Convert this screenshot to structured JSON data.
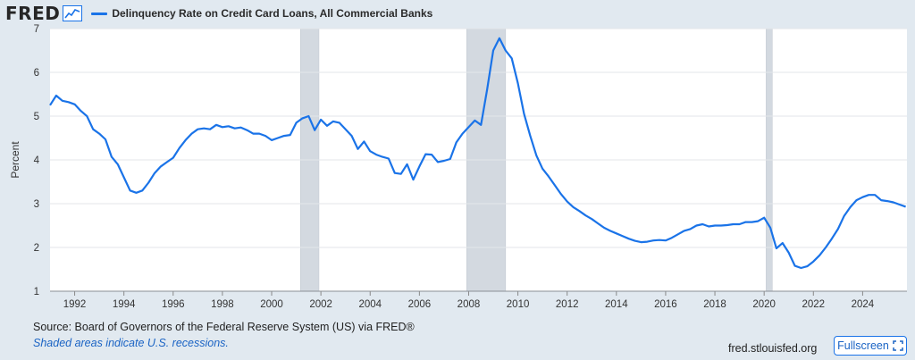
{
  "header": {
    "logo": "FRED",
    "logo_icon": "trend-chart-icon",
    "series_label": "Delinquency Rate on Credit Card Loans, All Commercial Banks"
  },
  "footer": {
    "source": "Source: Board of Governors of the Federal Reserve System (US) via FRED®",
    "note": "Shaded areas indicate U.S. recessions.",
    "link": "fred.stlouisfed.org",
    "fullscreen_label": "Fullscreen",
    "fullscreen_icon": "expand-icon"
  },
  "colors": {
    "line": "#1a73e8",
    "recession": "#d3d9e0",
    "background": "#e1e9f0",
    "plot": "#ffffff"
  },
  "chart_data": {
    "type": "line",
    "ylabel": "Percent",
    "xlabel": "",
    "ylim": [
      1,
      7
    ],
    "xlim": [
      1991.0,
      2025.8
    ],
    "yticks": [
      1,
      2,
      3,
      4,
      5,
      6,
      7
    ],
    "xticks": [
      1992,
      1994,
      1996,
      1998,
      2000,
      2002,
      2004,
      2006,
      2008,
      2010,
      2012,
      2014,
      2016,
      2018,
      2020,
      2022,
      2024
    ],
    "grid": "horizontal",
    "recessions": [
      [
        2001.17,
        2001.92
      ],
      [
        2007.92,
        2009.5
      ],
      [
        2020.08,
        2020.33
      ]
    ],
    "series": [
      {
        "name": "Delinquency Rate on Credit Card Loans, All Commercial Banks",
        "x": [
          1991.0,
          1991.25,
          1991.5,
          1991.75,
          1992.0,
          1992.25,
          1992.5,
          1992.75,
          1993.0,
          1993.25,
          1993.5,
          1993.75,
          1994.0,
          1994.25,
          1994.5,
          1994.75,
          1995.0,
          1995.25,
          1995.5,
          1995.75,
          1996.0,
          1996.25,
          1996.5,
          1996.75,
          1997.0,
          1997.25,
          1997.5,
          1997.75,
          1998.0,
          1998.25,
          1998.5,
          1998.75,
          1999.0,
          1999.25,
          1999.5,
          1999.75,
          2000.0,
          2000.25,
          2000.5,
          2000.75,
          2001.0,
          2001.25,
          2001.5,
          2001.75,
          2002.0,
          2002.25,
          2002.5,
          2002.75,
          2003.0,
          2003.25,
          2003.5,
          2003.75,
          2004.0,
          2004.25,
          2004.5,
          2004.75,
          2005.0,
          2005.25,
          2005.5,
          2005.75,
          2006.0,
          2006.25,
          2006.5,
          2006.75,
          2007.0,
          2007.25,
          2007.5,
          2007.75,
          2008.0,
          2008.25,
          2008.5,
          2008.75,
          2009.0,
          2009.25,
          2009.5,
          2009.75,
          2010.0,
          2010.25,
          2010.5,
          2010.75,
          2011.0,
          2011.25,
          2011.5,
          2011.75,
          2012.0,
          2012.25,
          2012.5,
          2012.75,
          2013.0,
          2013.25,
          2013.5,
          2013.75,
          2014.0,
          2014.25,
          2014.5,
          2014.75,
          2015.0,
          2015.25,
          2015.5,
          2015.75,
          2016.0,
          2016.25,
          2016.5,
          2016.75,
          2017.0,
          2017.25,
          2017.5,
          2017.75,
          2018.0,
          2018.25,
          2018.5,
          2018.75,
          2019.0,
          2019.25,
          2019.5,
          2019.75,
          2020.0,
          2020.25,
          2020.5,
          2020.75,
          2021.0,
          2021.25,
          2021.5,
          2021.75,
          2022.0,
          2022.25,
          2022.5,
          2022.75,
          2023.0,
          2023.25,
          2023.5,
          2023.75,
          2024.0,
          2024.25,
          2024.5,
          2024.75,
          2025.0,
          2025.25,
          2025.5,
          2025.75
        ],
        "y": [
          5.25,
          5.47,
          5.35,
          5.32,
          5.27,
          5.12,
          5.0,
          4.7,
          4.6,
          4.47,
          4.07,
          3.9,
          3.6,
          3.3,
          3.25,
          3.3,
          3.48,
          3.7,
          3.85,
          3.95,
          4.05,
          4.27,
          4.45,
          4.6,
          4.7,
          4.72,
          4.7,
          4.8,
          4.75,
          4.77,
          4.72,
          4.74,
          4.68,
          4.6,
          4.6,
          4.55,
          4.45,
          4.5,
          4.55,
          4.57,
          4.85,
          4.95,
          5.0,
          4.68,
          4.92,
          4.78,
          4.88,
          4.85,
          4.7,
          4.55,
          4.25,
          4.42,
          4.2,
          4.12,
          4.07,
          4.03,
          3.7,
          3.68,
          3.9,
          3.55,
          3.85,
          4.13,
          4.12,
          3.95,
          3.98,
          4.02,
          4.4,
          4.6,
          4.75,
          4.9,
          4.8,
          5.6,
          6.5,
          6.78,
          6.5,
          6.32,
          5.75,
          5.05,
          4.55,
          4.1,
          3.8,
          3.62,
          3.42,
          3.22,
          3.05,
          2.92,
          2.83,
          2.73,
          2.65,
          2.55,
          2.45,
          2.38,
          2.32,
          2.26,
          2.2,
          2.15,
          2.12,
          2.13,
          2.16,
          2.17,
          2.16,
          2.22,
          2.3,
          2.38,
          2.42,
          2.5,
          2.53,
          2.48,
          2.5,
          2.5,
          2.51,
          2.53,
          2.53,
          2.58,
          2.58,
          2.6,
          2.68,
          2.45,
          1.98,
          2.1,
          1.88,
          1.58,
          1.53,
          1.57,
          1.68,
          1.82,
          2.0,
          2.2,
          2.42,
          2.72,
          2.92,
          3.08,
          3.15,
          3.2,
          3.2,
          3.08,
          3.06,
          3.03,
          2.98,
          2.93
        ]
      }
    ]
  }
}
